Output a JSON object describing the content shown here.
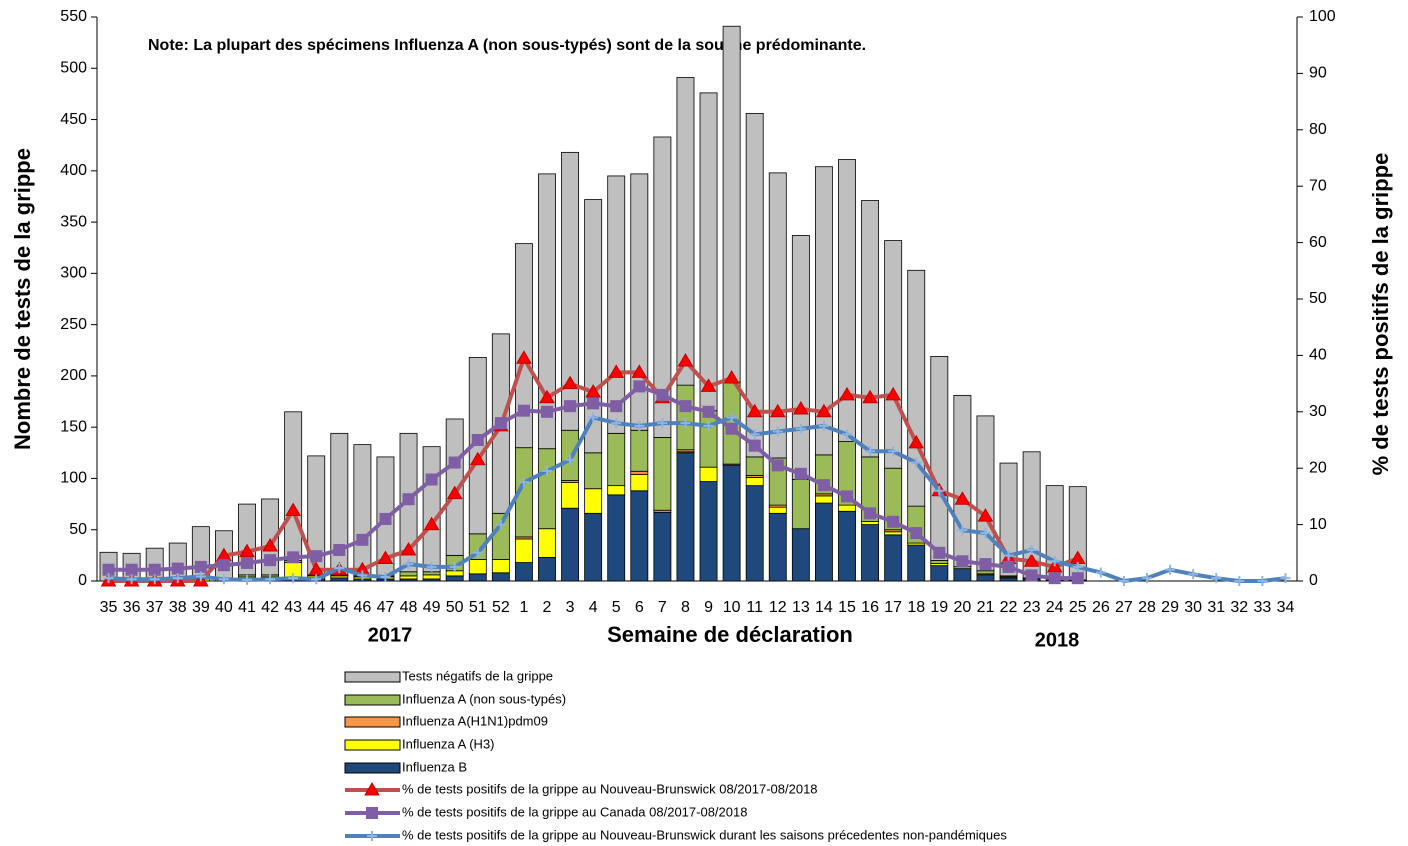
{
  "chart_data": {
    "type": "bar",
    "note": "Note: La plupart des spécimens Influenza A (non sous-typés) sont de la souche prédominante.",
    "x_label": "Semaine de déclaration",
    "y_label": "Nombre de tests de la grippe",
    "y2_label": "% de tests positifs de la grippe",
    "annotations": [
      "2017",
      "2018"
    ],
    "categories": [
      "35",
      "36",
      "37",
      "38",
      "39",
      "40",
      "41",
      "42",
      "43",
      "44",
      "45",
      "46",
      "47",
      "48",
      "49",
      "50",
      "51",
      "52",
      "1",
      "2",
      "3",
      "4",
      "5",
      "6",
      "7",
      "8",
      "9",
      "10",
      "11",
      "12",
      "13",
      "14",
      "15",
      "16",
      "17",
      "18",
      "19",
      "20",
      "21",
      "22",
      "23",
      "24",
      "25",
      "26",
      "27",
      "28",
      "29",
      "30",
      "31",
      "32",
      "33",
      "34"
    ],
    "ylim": [
      0,
      550
    ],
    "yticks": [
      0,
      50,
      100,
      150,
      200,
      250,
      300,
      350,
      400,
      450,
      500,
      550
    ],
    "y2lim": [
      0,
      100
    ],
    "y2ticks": [
      0,
      10,
      20,
      30,
      40,
      50,
      60,
      70,
      80,
      90,
      100
    ],
    "series": [
      {
        "name": "Tests négatifs de la grippe",
        "type": "bar",
        "color": "#bfbfbf",
        "values": [
          28,
          27,
          32,
          37,
          51,
          47,
          69,
          74,
          145,
          116,
          138,
          128,
          116,
          135,
          122,
          133,
          172,
          175,
          199,
          268,
          271,
          247,
          251,
          250,
          293,
          300,
          310,
          347,
          335,
          278,
          238,
          281,
          275,
          250,
          222,
          230,
          199,
          167,
          151,
          110,
          123,
          92,
          91,
          null,
          null,
          null,
          null,
          null,
          null,
          null,
          null,
          null
        ]
      },
      {
        "name": "Influenza A (non sous-typés)",
        "type": "bar",
        "color": "#9bbb59",
        "values": [
          0,
          0,
          0,
          0,
          0,
          0,
          2,
          2,
          2,
          1,
          1,
          1,
          1,
          4,
          3,
          15,
          25,
          45,
          87,
          78,
          49,
          35,
          51,
          40,
          71,
          63,
          55,
          80,
          18,
          46,
          48,
          38,
          62,
          63,
          60,
          36,
          3,
          2,
          3,
          1,
          1,
          0,
          0,
          null,
          null,
          null,
          null,
          null,
          null,
          null,
          null,
          null
        ]
      },
      {
        "name": "Influenza A(H1N1)pdm09",
        "type": "bar",
        "color": "#f79646",
        "values": [
          0,
          0,
          0,
          0,
          0,
          0,
          0,
          0,
          0,
          0,
          0,
          0,
          0,
          0,
          0,
          0,
          0,
          0,
          2,
          0,
          2,
          0,
          0,
          3,
          2,
          2,
          0,
          1,
          2,
          2,
          0,
          2,
          0,
          0,
          2,
          0,
          0,
          0,
          0,
          0,
          0,
          0,
          0,
          null,
          null,
          null,
          null,
          null,
          null,
          null,
          null,
          null
        ]
      },
      {
        "name": "Influenza A (H3)",
        "type": "bar",
        "color": "#ffff00",
        "values": [
          0,
          0,
          0,
          0,
          2,
          2,
          3,
          3,
          16,
          3,
          2,
          2,
          2,
          3,
          4,
          5,
          14,
          13,
          23,
          28,
          25,
          24,
          9,
          16,
          0,
          1,
          14,
          0,
          8,
          6,
          0,
          7,
          6,
          3,
          3,
          2,
          2,
          0,
          1,
          1,
          0,
          0,
          0,
          null,
          null,
          null,
          null,
          null,
          null,
          null,
          null,
          null
        ]
      },
      {
        "name": "Influenza B",
        "type": "bar",
        "color": "#1f497d",
        "values": [
          0,
          0,
          0,
          0,
          0,
          0,
          1,
          1,
          2,
          2,
          3,
          2,
          2,
          2,
          2,
          5,
          7,
          8,
          18,
          23,
          71,
          66,
          84,
          88,
          67,
          125,
          97,
          113,
          93,
          66,
          51,
          76,
          68,
          55,
          45,
          35,
          15,
          12,
          6,
          3,
          2,
          1,
          1,
          null,
          null,
          null,
          null,
          null,
          null,
          null,
          null,
          null
        ]
      },
      {
        "name": "% de tests positifs de la grippe  au Nouveau-Brunswick 08/2017-08/2018",
        "type": "line",
        "axis": "y2",
        "color": "#c0504d",
        "marker": "triangle",
        "values": [
          0,
          0,
          0,
          0,
          0,
          4.5,
          5.2,
          6.2,
          12.5,
          2,
          2,
          2,
          4,
          5.5,
          10,
          15.5,
          21.5,
          27.5,
          39.5,
          32.5,
          35,
          33.5,
          37,
          37,
          32.5,
          39,
          34.5,
          36,
          30,
          30,
          30.5,
          30,
          33,
          32.5,
          33,
          24.5,
          16,
          14.5,
          11.5,
          4,
          3.5,
          2.5,
          4,
          null,
          null,
          null,
          null,
          null,
          null,
          null,
          null,
          null
        ]
      },
      {
        "name": "% de tests positifs de la grippe  au Canada 08/2017-08/2018",
        "type": "line",
        "axis": "y2",
        "color": "#7f5ea6",
        "marker": "square",
        "values": [
          2,
          2,
          2,
          2.2,
          2.5,
          2.8,
          3.2,
          3.7,
          4.2,
          4.4,
          5.5,
          7.3,
          11,
          14.5,
          18,
          21,
          25,
          28,
          30.2,
          30,
          31,
          31.5,
          31,
          34.5,
          33,
          31,
          30,
          27,
          24,
          20.5,
          19,
          17,
          15,
          12,
          10.5,
          8.5,
          5,
          3.5,
          3,
          2.5,
          1,
          0.5,
          0.5,
          null,
          null,
          null,
          null,
          null,
          null,
          null,
          null,
          null
        ]
      },
      {
        "name": "% de tests positifs de la grippe  au Nouveau-Brunswick durant les saisons précedentes non-pandémiques",
        "type": "line",
        "axis": "y2",
        "color": "#4f81bd",
        "marker": "plus",
        "values": [
          0.5,
          0.3,
          0.3,
          0.5,
          0.8,
          0.3,
          0.2,
          0.3,
          0.5,
          0.3,
          2.3,
          1,
          0.7,
          3,
          2.5,
          2.5,
          5,
          10,
          17.5,
          19.5,
          21.5,
          29,
          28,
          27.5,
          28,
          28,
          27.5,
          29,
          26,
          26.5,
          27,
          27.5,
          26,
          23,
          23,
          21,
          16,
          9,
          8.5,
          4.5,
          5.5,
          3.5,
          2.5,
          1.5,
          0,
          0.5,
          2,
          1.2,
          0.5,
          0,
          0,
          0.5
        ]
      }
    ]
  }
}
